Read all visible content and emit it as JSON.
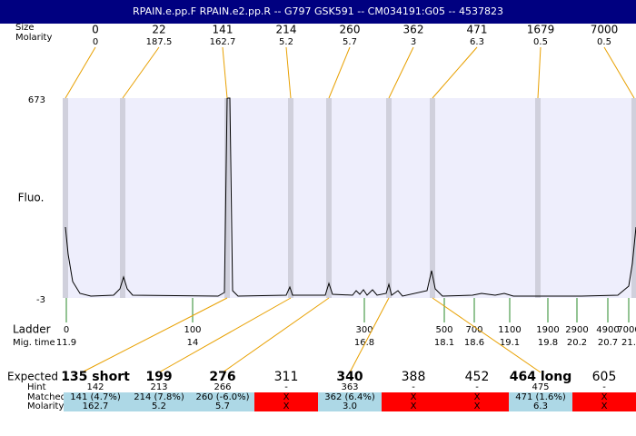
{
  "header": {
    "title": "RPAIN.e.pp.F  RPAIN.e2.pp.R -- G797 GSK591 -- CM034191:G05 -- 4537823"
  },
  "peaks": {
    "size_label": "Size",
    "molarity_label": "Molarity",
    "sizes": [
      "0",
      "22",
      "141",
      "214",
      "260",
      "362",
      "471",
      "1679",
      "7000"
    ],
    "molarity": [
      "0",
      "187.5",
      "162.7",
      "5.2",
      "5.7",
      "3",
      "6.3",
      "0.5",
      "0.5"
    ]
  },
  "plot": {
    "y_label": "Fluo.",
    "y_top": "673",
    "y_bottom": "-3"
  },
  "ladder": {
    "label": "Ladder",
    "time_label": "Mig. time",
    "sizes": [
      "0",
      "100",
      "300",
      "500",
      "700",
      "1100",
      "1900",
      "2900",
      "4900",
      "7000"
    ],
    "times": [
      "11.9",
      "14",
      "16.8",
      "18.1",
      "18.6",
      "19.1",
      "19.8",
      "20.2",
      "20.7",
      "21."
    ]
  },
  "table": {
    "labels": [
      "Expected",
      "Hint",
      "Matched",
      "Molarity"
    ],
    "expected": [
      "135 short",
      "199",
      "276",
      "311",
      "340",
      "388",
      "452",
      "464 long",
      "605"
    ],
    "bold": [
      true,
      true,
      true,
      false,
      true,
      false,
      false,
      true,
      false
    ],
    "hint": [
      "142",
      "213",
      "266",
      "-",
      "363",
      "-",
      "-",
      "475",
      "-"
    ],
    "matched": [
      "141 (4.7%)",
      "214 (7.8%)",
      "260 (-6.0%)",
      "X",
      "362 (6.4%)",
      "X",
      "X",
      "471 (1.6%)",
      "X"
    ],
    "molarity": [
      "162.7",
      "5.2",
      "5.7",
      "X",
      "3.0",
      "X",
      "X",
      "6.3",
      "X"
    ]
  }
}
